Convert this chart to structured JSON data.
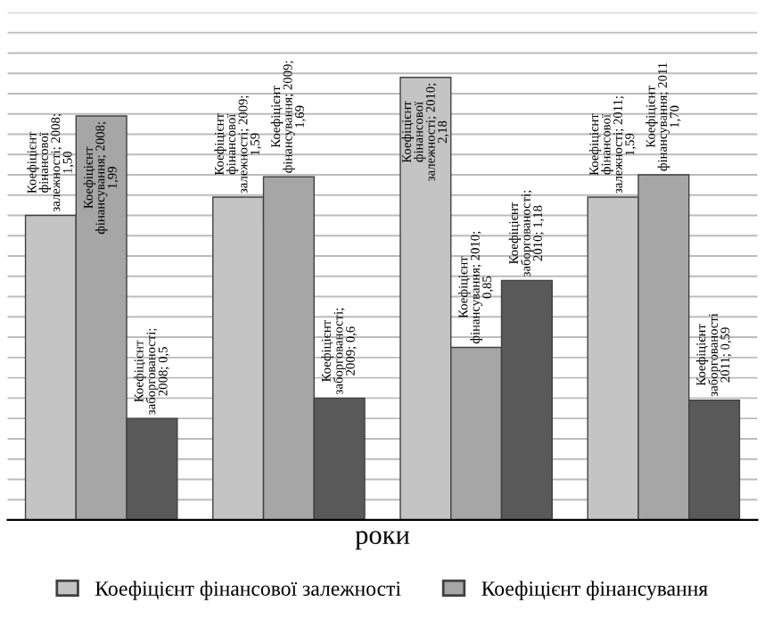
{
  "chart_data": {
    "type": "bar",
    "xlabel": "роки",
    "categories": [
      null,
      null,
      null,
      null
    ],
    "series": [
      {
        "name": "Коефіцієнт фінансової залежності",
        "color": "#c4c4c4",
        "values": [
          1.5,
          1.59,
          2.18,
          1.59
        ],
        "value_labels": [
          "Коефіцієнт\nфінансової\nзалежності; 2008;\n1,50",
          "Коефіцієнт\nфінансової\nзалежності; 2009;\n1,59",
          "Коефіцієнт\nфінансової\nзалежності; 2010;\n2,18",
          "Коефіцієнт\nфінансової\nзалежності; 2011;\n1,59"
        ]
      },
      {
        "name": "Коефіцієнт фінансування",
        "color": "#a6a6a6",
        "values": [
          1.99,
          1.69,
          0.85,
          1.7
        ],
        "value_labels": [
          "Коефіцієнт\nфінансування; 2008;\n1,99",
          "Коефіцієнт\nфінансування; 2009;\n1,69",
          "Коефіцієнт\nфінансування; 2010;\n0,85",
          "Коефіцієнт\nфінансування; 2011\n1,70"
        ]
      },
      {
        "color": "#595959",
        "values": [
          0.5,
          0.6,
          1.18,
          0.59
        ],
        "value_labels": [
          "Коефіцієнт\nзаборгованості;\n2008; 0,5",
          "Коефіцієнт\nзаборгованості;\n2009; 0,6",
          "Коефіцієнт\nзаборгованості;\n2010; 1,18",
          "Коефіцієнт\nзаборгованості\n2011; 0,59"
        ]
      }
    ],
    "ylim": [
      0,
      2.5
    ],
    "yticks": [
      {
        "value": 0,
        "label": null
      },
      {
        "value": 0.1,
        "label": null
      },
      {
        "value": 0.2,
        "label": null
      },
      {
        "value": 0.3,
        "label": null
      },
      {
        "value": 0.4,
        "label": null
      },
      {
        "value": 0.5,
        "label": null
      },
      {
        "value": 0.6,
        "label": null
      },
      {
        "value": 0.7,
        "label": null
      },
      {
        "value": 0.8,
        "label": null
      },
      {
        "value": 0.9,
        "label": null
      },
      {
        "value": 1.0,
        "label": null
      },
      {
        "value": 1.1,
        "label": null
      },
      {
        "value": 1.2,
        "label": null
      },
      {
        "value": 1.3,
        "label": null
      },
      {
        "value": 1.4,
        "label": null
      },
      {
        "value": 1.5,
        "label": null
      },
      {
        "value": 1.6,
        "label": null
      },
      {
        "value": 1.7,
        "label": null
      },
      {
        "value": 1.8,
        "label": null
      },
      {
        "value": 1.9,
        "label": null
      },
      {
        "value": 2.0,
        "label": null
      },
      {
        "value": 2.1,
        "label": null
      },
      {
        "value": 2.2,
        "label": null
      },
      {
        "value": 2.3,
        "label": null
      },
      {
        "value": 2.4,
        "label": null
      },
      {
        "value": 2.5,
        "label": null
      }
    ],
    "grid": "y",
    "legend": "bottom",
    "tick_labels": false
  }
}
